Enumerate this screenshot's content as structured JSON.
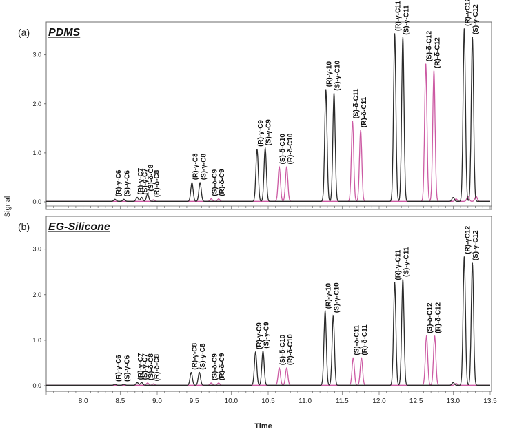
{
  "chart_data": {
    "type": "line",
    "ylabel": "Signal",
    "xlabel": "Time",
    "xlim": [
      7.5,
      13.5
    ],
    "ylim": [
      0,
      3.6
    ],
    "x_ticks": [
      "8.0",
      "8.5",
      "9.0",
      "9.5",
      "10.0",
      "10.5",
      "11.0",
      "11.5",
      "12.0",
      "12.5",
      "13.0",
      "13.5"
    ],
    "y_ticks": [
      "0.0",
      "1.0",
      "2.0",
      "3.0"
    ],
    "colors": {
      "black": "#2b2b2b",
      "pink": "#cc5aa3"
    },
    "panels": [
      {
        "letter": "(a)",
        "title": "PDMS",
        "peaks": [
          {
            "name": "(R)-γ-C6",
            "time": 8.43,
            "height": 0.04,
            "color": "black"
          },
          {
            "name": "(S)-γ-C6",
            "time": 8.55,
            "height": 0.04,
            "color": "black"
          },
          {
            "name": "(R)-γ-C7",
            "time": 8.73,
            "height": 0.08,
            "color": "black"
          },
          {
            "name": "(S)-γ-C7",
            "time": 8.79,
            "height": 0.08,
            "color": "black"
          },
          {
            "name": "(S)-δ-C8",
            "time": 8.87,
            "height": 0.15,
            "color": "black"
          },
          {
            "name": "(R)-δ-C8",
            "time": 8.95,
            "height": 0.03,
            "color": "pink"
          },
          {
            "name": "(R)-γ-C8",
            "time": 9.47,
            "height": 0.38,
            "color": "black"
          },
          {
            "name": "(S)-γ-C8",
            "time": 9.58,
            "height": 0.38,
            "color": "black"
          },
          {
            "name": "(S)-δ-C9",
            "time": 9.73,
            "height": 0.05,
            "color": "pink"
          },
          {
            "name": "(R)-δ-C9",
            "time": 9.83,
            "height": 0.05,
            "color": "pink"
          },
          {
            "name": "(R)-γ-C9",
            "time": 10.35,
            "height": 1.06,
            "color": "black"
          },
          {
            "name": "(S)-γ-C9",
            "time": 10.46,
            "height": 1.08,
            "color": "black"
          },
          {
            "name": "(S)-δ-C10",
            "time": 10.65,
            "height": 0.7,
            "color": "pink"
          },
          {
            "name": "(R)-δ-C10",
            "time": 10.75,
            "height": 0.7,
            "color": "pink"
          },
          {
            "name": "(R)-γ-10",
            "time": 11.28,
            "height": 2.28,
            "color": "black"
          },
          {
            "name": "(S)-γ-C10",
            "time": 11.39,
            "height": 2.2,
            "color": "black"
          },
          {
            "name": "(S)-δ-C11",
            "time": 11.64,
            "height": 1.63,
            "color": "pink"
          },
          {
            "name": "(R)-δ-C11",
            "time": 11.75,
            "height": 1.45,
            "color": "pink"
          },
          {
            "name": "(R)-γ-C11",
            "time": 12.21,
            "height": 3.42,
            "color": "black"
          },
          {
            "name": "(S)-γ-C11",
            "time": 12.32,
            "height": 3.34,
            "color": "black"
          },
          {
            "name": "(S)-δ-C12",
            "time": 12.63,
            "height": 2.8,
            "color": "pink"
          },
          {
            "name": "(R)-δ-C12",
            "time": 12.74,
            "height": 2.66,
            "color": "pink"
          },
          {
            "name": "(R)-γC12",
            "time": 13.15,
            "height": 3.52,
            "color": "black"
          },
          {
            "name": "(S)-γ-C12",
            "time": 13.26,
            "height": 3.35,
            "color": "black"
          }
        ],
        "extra_peaks": [
          {
            "time": 13.0,
            "height": 0.08,
            "color": "black"
          },
          {
            "time": 13.04,
            "height": 0.05,
            "color": "pink"
          },
          {
            "time": 13.2,
            "height": 0.1,
            "color": "pink"
          },
          {
            "time": 13.31,
            "height": 0.1,
            "color": "pink"
          }
        ]
      },
      {
        "letter": "(b)",
        "title": "EG-Silicone",
        "peaks": [
          {
            "name": "(R)-γ-C6",
            "time": 8.43,
            "height": 0.02,
            "color": "black"
          },
          {
            "name": "(S)-γ-C6",
            "time": 8.55,
            "height": 0.02,
            "color": "black"
          },
          {
            "name": "(R)-γ-C7",
            "time": 8.73,
            "height": 0.06,
            "color": "black"
          },
          {
            "name": "(S)-γ-C7",
            "time": 8.79,
            "height": 0.06,
            "color": "black"
          },
          {
            "name": "(S)-δ-C8",
            "time": 8.87,
            "height": 0.05,
            "color": "pink"
          },
          {
            "name": "(R)-δ-C8",
            "time": 8.95,
            "height": 0.03,
            "color": "pink"
          },
          {
            "name": "(R)-γ-C8",
            "time": 9.46,
            "height": 0.28,
            "color": "black"
          },
          {
            "name": "(S)-γ-C8",
            "time": 9.57,
            "height": 0.28,
            "color": "black"
          },
          {
            "name": "(S)-δ-C9",
            "time": 9.73,
            "height": 0.05,
            "color": "pink"
          },
          {
            "name": "(R)-δ-C9",
            "time": 9.83,
            "height": 0.05,
            "color": "pink"
          },
          {
            "name": "(R)-γ-C9",
            "time": 10.33,
            "height": 0.73,
            "color": "black"
          },
          {
            "name": "(S)-γ-C9",
            "time": 10.43,
            "height": 0.75,
            "color": "black"
          },
          {
            "name": "(S)-δ-C10",
            "time": 10.65,
            "height": 0.38,
            "color": "pink"
          },
          {
            "name": "(R)-δ-C10",
            "time": 10.75,
            "height": 0.38,
            "color": "pink"
          },
          {
            "name": "(R)-γ-10",
            "time": 11.27,
            "height": 1.62,
            "color": "black"
          },
          {
            "name": "(S)-γ-C10",
            "time": 11.38,
            "height": 1.53,
            "color": "black"
          },
          {
            "name": "(S)-δ-C11",
            "time": 11.65,
            "height": 0.6,
            "color": "pink"
          },
          {
            "name": "(R)-δ-C11",
            "time": 11.76,
            "height": 0.6,
            "color": "pink"
          },
          {
            "name": "(R)-γ-C11",
            "time": 12.21,
            "height": 2.25,
            "color": "black"
          },
          {
            "name": "(S)-γ-C11",
            "time": 12.32,
            "height": 2.32,
            "color": "black"
          },
          {
            "name": "(S)-δ-C12",
            "time": 12.64,
            "height": 1.08,
            "color": "pink"
          },
          {
            "name": "(R)-δ-C12",
            "time": 12.75,
            "height": 1.08,
            "color": "pink"
          },
          {
            "name": "(R)-γC12",
            "time": 13.15,
            "height": 2.82,
            "color": "black"
          },
          {
            "name": "(S)-γ-C12",
            "time": 13.26,
            "height": 2.68,
            "color": "black"
          }
        ],
        "extra_peaks": [
          {
            "time": 13.0,
            "height": 0.06,
            "color": "black"
          },
          {
            "time": 13.04,
            "height": 0.04,
            "color": "pink"
          }
        ]
      }
    ]
  }
}
